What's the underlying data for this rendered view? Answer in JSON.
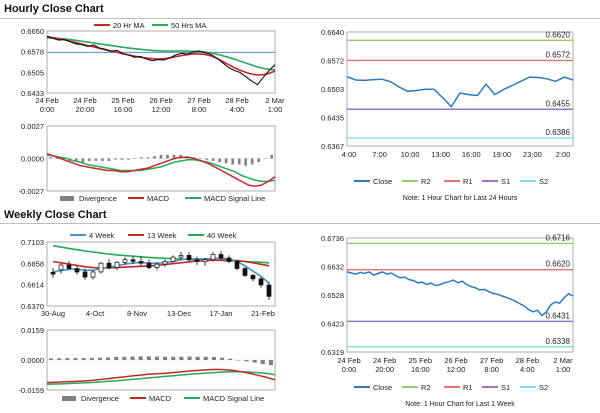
{
  "titles": {
    "hourly": "Hourly Close Chart",
    "weekly": "Weekly Close Chart"
  },
  "colors": {
    "ma20": "#c62828",
    "ma50": "#27a95a",
    "price": "#111111",
    "ref": "#4f8fd4",
    "close": "#2b7bbf",
    "r2": "#9ccc65",
    "r1": "#e57373",
    "s1": "#9575cd",
    "s2": "#80deea",
    "w4": "#4f8fd4",
    "w13": "#c62828",
    "w40": "#27a95a",
    "divergence": "#808080",
    "macd": "#c62828",
    "signal": "#27a95a",
    "grid": "#d8d8d8"
  },
  "chart_data": [
    {
      "id": "hourly-price",
      "type": "line",
      "legend": [
        "20 Hr MA",
        "50 Hrs MA"
      ],
      "yticks": [
        "0.6650",
        "0.6578",
        "0.6505",
        "0.6433"
      ],
      "ylim": [
        0.6433,
        0.665
      ],
      "xticks": [
        "24 Feb\n0:00",
        "24 Feb\n20:00",
        "25 Feb\n16:00",
        "26 Feb\n12:00",
        "27 Feb\n8:00",
        "28 Feb\n4:00",
        "2 Mar\n1:00"
      ],
      "ref_line": 0.6575,
      "price": [
        0.6632,
        0.6624,
        0.6618,
        0.662,
        0.6612,
        0.6605,
        0.6602,
        0.6596,
        0.6601,
        0.659,
        0.6586,
        0.658,
        0.6582,
        0.6571,
        0.6566,
        0.6558,
        0.6561,
        0.6552,
        0.6546,
        0.655,
        0.6548,
        0.6556,
        0.6566,
        0.6572,
        0.6569,
        0.6576,
        0.658,
        0.6574,
        0.6568,
        0.6556,
        0.654,
        0.6523,
        0.6512,
        0.6505,
        0.649,
        0.6475,
        0.6462,
        0.6488,
        0.6512,
        0.6532
      ],
      "ma20": [
        0.663,
        0.6627,
        0.6623,
        0.6619,
        0.6614,
        0.6609,
        0.6604,
        0.6599,
        0.6594,
        0.6589,
        0.6584,
        0.6579,
        0.6575,
        0.657,
        0.6566,
        0.6562,
        0.6558,
        0.6555,
        0.6553,
        0.6552,
        0.6553,
        0.6556,
        0.656,
        0.6564,
        0.6567,
        0.657,
        0.657,
        0.6568,
        0.6563,
        0.6555,
        0.6544,
        0.6533,
        0.6522,
        0.6513,
        0.6505,
        0.6499,
        0.6496,
        0.6497,
        0.6502,
        0.651
      ],
      "ma50": [
        0.6626,
        0.6625,
        0.6624,
        0.6622,
        0.662,
        0.6617,
        0.6614,
        0.6611,
        0.6608,
        0.6605,
        0.6602,
        0.6599,
        0.6596,
        0.6593,
        0.659,
        0.6588,
        0.6586,
        0.6584,
        0.6582,
        0.6581,
        0.658,
        0.658,
        0.658,
        0.658,
        0.658,
        0.6579,
        0.6578,
        0.6576,
        0.6573,
        0.6569,
        0.6564,
        0.6558,
        0.6552,
        0.6545,
        0.6538,
        0.6531,
        0.6524,
        0.6519,
        0.6516,
        0.6514
      ]
    },
    {
      "id": "hourly-macd",
      "type": "line",
      "legend": [
        "Divergence",
        "MACD",
        "MACD Signal Line"
      ],
      "yticks": [
        "0.0027",
        "0.0000",
        "-0.0027"
      ],
      "ylim": [
        -0.0027,
        0.0027
      ],
      "macd": [
        0.0004,
        0.0002,
        0.0,
        -0.0002,
        -0.0004,
        -0.0006,
        -0.0007,
        -0.0008,
        -0.0009,
        -0.001,
        -0.001,
        -0.0011,
        -0.0011,
        -0.001,
        -0.0009,
        -0.0008,
        -0.0006,
        -0.0004,
        -0.0002,
        0.0,
        0.0001,
        0.0001,
        0.0,
        -0.0002,
        -0.0004,
        -0.0007,
        -0.001,
        -0.0013,
        -0.0016,
        -0.0019,
        -0.0022,
        -0.0023,
        -0.0022,
        -0.0019,
        -0.0015
      ],
      "signal": [
        0.0003,
        0.0002,
        0.0001,
        0.0,
        -0.0002,
        -0.0003,
        -0.0005,
        -0.0006,
        -0.0007,
        -0.0008,
        -0.0009,
        -0.001,
        -0.001,
        -0.001,
        -0.001,
        -0.0009,
        -0.0008,
        -0.0007,
        -0.0005,
        -0.0003,
        -0.0002,
        -0.0001,
        -0.0001,
        -0.0002,
        -0.0003,
        -0.0005,
        -0.0007,
        -0.0009,
        -0.0011,
        -0.0014,
        -0.0016,
        -0.0018,
        -0.0019,
        -0.0019,
        -0.0018
      ],
      "divergence": [
        0.0001,
        0.0,
        -0.0001,
        -0.0002,
        -0.0002,
        -0.0003,
        -0.0002,
        -0.0002,
        -0.0002,
        -0.0002,
        -0.0001,
        -0.0001,
        -0.0001,
        0.0,
        0.0001,
        0.0001,
        0.0002,
        0.0003,
        0.0003,
        0.0003,
        0.0003,
        0.0002,
        0.0001,
        0.0,
        -0.0001,
        -0.0002,
        -0.0003,
        -0.0004,
        -0.0005,
        -0.0005,
        -0.0006,
        -0.0005,
        -0.0003,
        0.0,
        0.0003
      ]
    },
    {
      "id": "hourly-levels",
      "type": "line",
      "yticks": [
        "0.6640",
        "0.6572",
        "0.6503",
        "0.6435",
        "0.6367"
      ],
      "ylim": [
        0.6367,
        0.664
      ],
      "xticks": [
        "4:00",
        "7:00",
        "10:00",
        "13:00",
        "16:00",
        "19:00",
        "23:00",
        "2:00"
      ],
      "levels": [
        {
          "name": "R2",
          "value": 0.662,
          "label": "0.6620"
        },
        {
          "name": "R1",
          "value": 0.6572,
          "label": "0.6572"
        },
        {
          "name": "S1",
          "value": 0.6455,
          "label": "0.6455"
        },
        {
          "name": "S2",
          "value": 0.6386,
          "label": "0.6386"
        }
      ],
      "close": [
        0.6533,
        0.6525,
        0.6524,
        0.6526,
        0.6527,
        0.6521,
        0.6508,
        0.6498,
        0.65,
        0.6503,
        0.6503,
        0.6483,
        0.6461,
        0.6494,
        0.649,
        0.6488,
        0.6515,
        0.649,
        0.6502,
        0.6512,
        0.6522,
        0.6532,
        0.6531,
        0.6528,
        0.6522,
        0.6532,
        0.6525
      ],
      "legend": [
        "Close",
        "R2",
        "R1",
        "S1",
        "S2"
      ],
      "note": "Note: 1 Hour Chart for Last 24 Hours"
    },
    {
      "id": "weekly-price",
      "type": "line",
      "legend": [
        "4 Week",
        "13 Week",
        "40 Week"
      ],
      "yticks": [
        "0.7103",
        "0.6858",
        "0.6614",
        "0.6370"
      ],
      "ylim": [
        0.637,
        0.7103
      ],
      "xticks": [
        "30-Aug",
        "4-Oct",
        "8-Nov",
        "13-Dec",
        "17-Jan",
        "21-Feb"
      ],
      "candles": [
        {
          "o": 0.6755,
          "h": 0.6805,
          "l": 0.669,
          "c": 0.6735
        },
        {
          "o": 0.6785,
          "h": 0.686,
          "l": 0.674,
          "c": 0.684
        },
        {
          "o": 0.684,
          "h": 0.6885,
          "l": 0.678,
          "c": 0.68
        },
        {
          "o": 0.68,
          "h": 0.6835,
          "l": 0.673,
          "c": 0.676
        },
        {
          "o": 0.676,
          "h": 0.68,
          "l": 0.667,
          "c": 0.67
        },
        {
          "o": 0.67,
          "h": 0.678,
          "l": 0.667,
          "c": 0.676
        },
        {
          "o": 0.676,
          "h": 0.6875,
          "l": 0.674,
          "c": 0.686
        },
        {
          "o": 0.686,
          "h": 0.691,
          "l": 0.679,
          "c": 0.681
        },
        {
          "o": 0.681,
          "h": 0.6885,
          "l": 0.678,
          "c": 0.687
        },
        {
          "o": 0.687,
          "h": 0.693,
          "l": 0.684,
          "c": 0.69
        },
        {
          "o": 0.69,
          "h": 0.6935,
          "l": 0.685,
          "c": 0.688
        },
        {
          "o": 0.688,
          "h": 0.694,
          "l": 0.683,
          "c": 0.686
        },
        {
          "o": 0.686,
          "h": 0.69,
          "l": 0.679,
          "c": 0.681
        },
        {
          "o": 0.681,
          "h": 0.687,
          "l": 0.678,
          "c": 0.685
        },
        {
          "o": 0.685,
          "h": 0.6905,
          "l": 0.682,
          "c": 0.688
        },
        {
          "o": 0.688,
          "h": 0.695,
          "l": 0.686,
          "c": 0.693
        },
        {
          "o": 0.693,
          "h": 0.699,
          "l": 0.689,
          "c": 0.695
        },
        {
          "o": 0.695,
          "h": 0.6985,
          "l": 0.688,
          "c": 0.69
        },
        {
          "o": 0.69,
          "h": 0.6935,
          "l": 0.684,
          "c": 0.688
        },
        {
          "o": 0.688,
          "h": 0.692,
          "l": 0.683,
          "c": 0.69
        },
        {
          "o": 0.69,
          "h": 0.699,
          "l": 0.688,
          "c": 0.696
        },
        {
          "o": 0.696,
          "h": 0.7,
          "l": 0.69,
          "c": 0.692
        },
        {
          "o": 0.692,
          "h": 0.695,
          "l": 0.686,
          "c": 0.688
        },
        {
          "o": 0.688,
          "h": 0.69,
          "l": 0.678,
          "c": 0.68
        },
        {
          "o": 0.68,
          "h": 0.682,
          "l": 0.67,
          "c": 0.672
        },
        {
          "o": 0.672,
          "h": 0.674,
          "l": 0.665,
          "c": 0.668
        },
        {
          "o": 0.668,
          "h": 0.67,
          "l": 0.658,
          "c": 0.661
        },
        {
          "o": 0.661,
          "h": 0.664,
          "l": 0.644,
          "c": 0.648
        }
      ],
      "w4": [
        0.676,
        0.6775,
        0.679,
        0.679,
        0.678,
        0.678,
        0.68,
        0.681,
        0.683,
        0.685,
        0.686,
        0.687,
        0.686,
        0.686,
        0.6865,
        0.688,
        0.69,
        0.691,
        0.691,
        0.691,
        0.6915,
        0.692,
        0.691,
        0.688,
        0.683,
        0.677,
        0.671,
        0.663
      ],
      "w13": [
        0.688,
        0.6865,
        0.685,
        0.6835,
        0.682,
        0.681,
        0.6805,
        0.6805,
        0.681,
        0.6815,
        0.682,
        0.6825,
        0.683,
        0.6835,
        0.6845,
        0.6855,
        0.6865,
        0.6875,
        0.6885,
        0.689,
        0.6895,
        0.6898,
        0.6896,
        0.689,
        0.688,
        0.6865,
        0.6848,
        0.683
      ],
      "w40": [
        0.706,
        0.7045,
        0.703,
        0.7015,
        0.7,
        0.6988,
        0.6976,
        0.6965,
        0.6955,
        0.6947,
        0.694,
        0.6933,
        0.6927,
        0.6921,
        0.6916,
        0.6912,
        0.6908,
        0.6904,
        0.69,
        0.6897,
        0.6894,
        0.6891,
        0.6888,
        0.6884,
        0.688,
        0.6875,
        0.687,
        0.6865
      ]
    },
    {
      "id": "weekly-macd",
      "type": "line",
      "legend": [
        "Divergence",
        "MACD",
        "MACD Signal Line"
      ],
      "yticks": [
        "0.0159",
        "0.0000",
        "-0.0159"
      ],
      "ylim": [
        -0.0159,
        0.0159
      ],
      "macd": [
        -0.012,
        -0.0118,
        -0.0116,
        -0.0114,
        -0.0112,
        -0.0109,
        -0.0105,
        -0.01,
        -0.0095,
        -0.009,
        -0.0085,
        -0.008,
        -0.0076,
        -0.0073,
        -0.007,
        -0.0066,
        -0.0062,
        -0.0058,
        -0.0055,
        -0.0052,
        -0.005,
        -0.0051,
        -0.0055,
        -0.0062,
        -0.0071,
        -0.0081,
        -0.0092,
        -0.0105
      ],
      "signal": [
        -0.0128,
        -0.0127,
        -0.0126,
        -0.0124,
        -0.0122,
        -0.012,
        -0.0117,
        -0.0114,
        -0.0111,
        -0.0107,
        -0.0103,
        -0.0099,
        -0.0095,
        -0.0091,
        -0.0087,
        -0.0083,
        -0.0079,
        -0.0076,
        -0.0072,
        -0.0069,
        -0.0066,
        -0.0063,
        -0.0062,
        -0.0062,
        -0.0064,
        -0.0067,
        -0.0071,
        -0.0078
      ],
      "divergence": [
        0.0008,
        0.0009,
        0.001,
        0.001,
        0.001,
        0.0011,
        0.0012,
        0.0014,
        0.0016,
        0.0017,
        0.0018,
        0.0019,
        0.0019,
        0.0018,
        0.0017,
        0.0017,
        0.0017,
        0.0018,
        0.0017,
        0.0017,
        0.0016,
        0.0012,
        0.0007,
        0.0,
        -0.0007,
        -0.0014,
        -0.0021,
        -0.0027
      ]
    },
    {
      "id": "weekly-levels",
      "type": "line",
      "yticks": [
        "0.6736",
        "0.6632",
        "0.6528",
        "0.6423",
        "0.6319"
      ],
      "ylim": [
        0.6319,
        0.6736
      ],
      "xticks": [
        "24 Feb\n0:00",
        "24 Feb\n20:00",
        "25 Feb\n16:00",
        "26 Feb\n12:00",
        "27 Feb\n8:00",
        "28 Feb\n4:00",
        "2 Mar\n1:00"
      ],
      "levels": [
        {
          "name": "R2",
          "value": 0.6716,
          "label": "0.6716"
        },
        {
          "name": "R1",
          "value": 0.662,
          "label": "0.6620"
        },
        {
          "name": "S1",
          "value": 0.6431,
          "label": "0.6431"
        },
        {
          "name": "S2",
          "value": 0.6338,
          "label": "0.6338"
        }
      ],
      "close": [
        0.6612,
        0.6608,
        0.6604,
        0.661,
        0.6606,
        0.6612,
        0.66,
        0.6606,
        0.6612,
        0.6604,
        0.6608,
        0.6598,
        0.659,
        0.6593,
        0.6584,
        0.658,
        0.6572,
        0.6574,
        0.6566,
        0.6571,
        0.6562,
        0.6566,
        0.6572,
        0.6576,
        0.6582,
        0.6572,
        0.6578,
        0.6566,
        0.6558,
        0.6554,
        0.6546,
        0.6548,
        0.654,
        0.6533,
        0.653,
        0.6524,
        0.6518,
        0.6512,
        0.6505,
        0.6496,
        0.6487,
        0.6474,
        0.6466,
        0.6472,
        0.6452,
        0.6466,
        0.6492,
        0.6502,
        0.6498,
        0.6518,
        0.6532,
        0.6524
      ],
      "legend": [
        "Close",
        "R2",
        "R1",
        "S1",
        "S2"
      ],
      "note": "Note: 1 Hour Chart for Last 1 Week"
    }
  ]
}
